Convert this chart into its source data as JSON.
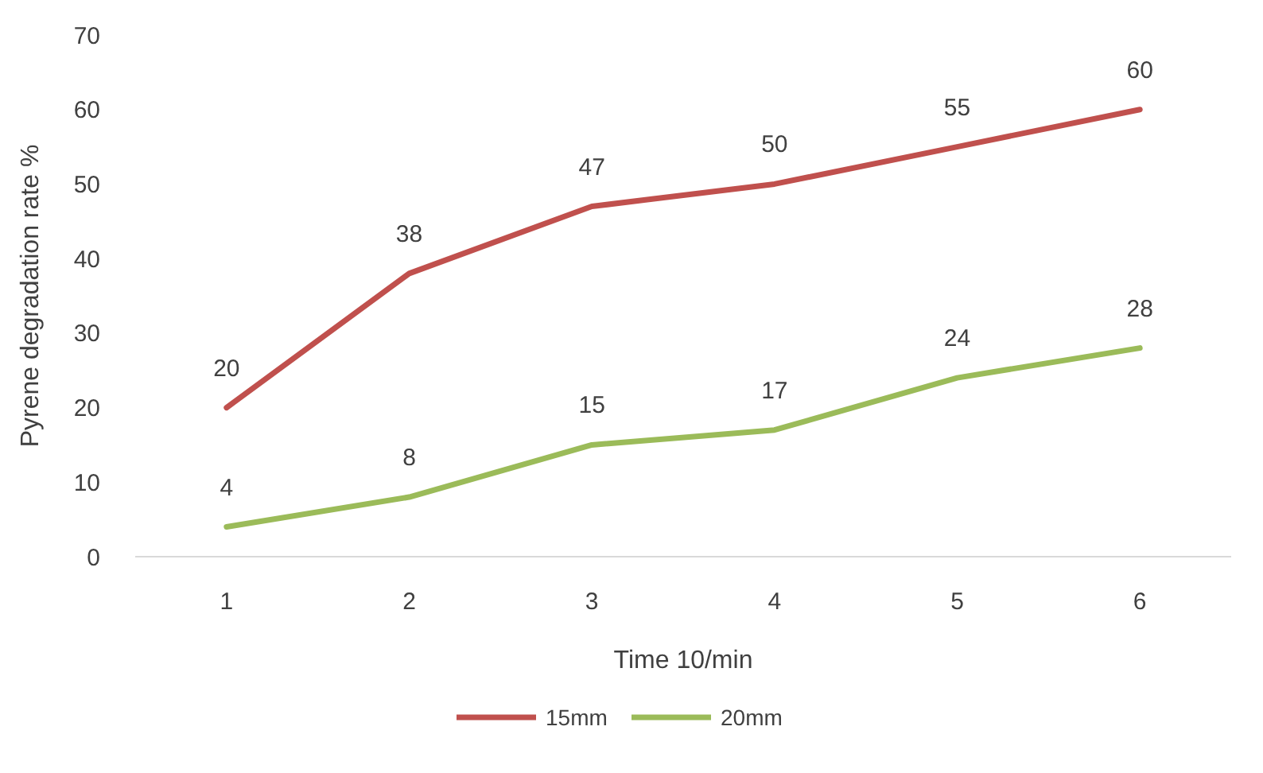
{
  "chart_data": {
    "type": "line",
    "xlabel": "Time 10/min",
    "ylabel": "Pyrene degradation rate %",
    "categories": [
      "1",
      "2",
      "3",
      "4",
      "5",
      "6"
    ],
    "series": [
      {
        "name": "15mm",
        "color": "#c0504d",
        "values": [
          20,
          38,
          47,
          50,
          55,
          60
        ]
      },
      {
        "name": "20mm",
        "color": "#9bbb59",
        "values": [
          4,
          8,
          15,
          17,
          24,
          28
        ]
      }
    ],
    "ylim": [
      0,
      70
    ],
    "yticks": [
      0,
      10,
      20,
      30,
      40,
      50,
      60,
      70
    ],
    "data_labels": true,
    "legend": "bottom",
    "grid": false,
    "marker": "none",
    "line_style": "solid"
  }
}
